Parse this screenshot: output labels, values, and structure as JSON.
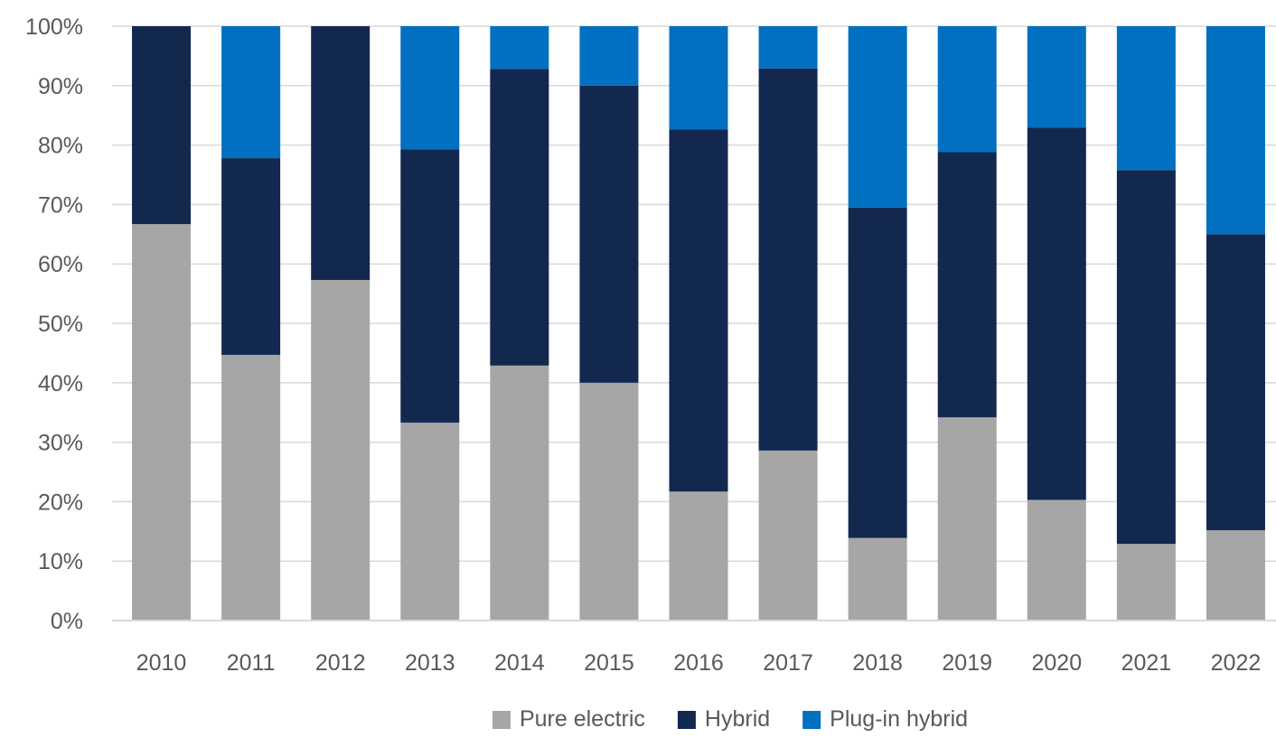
{
  "chart_data": {
    "type": "bar",
    "stacked": true,
    "categories": [
      "2010",
      "2011",
      "2012",
      "2013",
      "2014",
      "2015",
      "2016",
      "2017",
      "2018",
      "2019",
      "2020",
      "2021",
      "2022"
    ],
    "series": [
      {
        "name": "Pure electric",
        "color": "#a6a6a6",
        "values": [
          66.7,
          44.7,
          57.3,
          33.3,
          42.9,
          40.0,
          21.7,
          28.6,
          13.9,
          34.2,
          20.3,
          12.9,
          15.2
        ]
      },
      {
        "name": "Hybrid",
        "color": "#13284f",
        "values": [
          33.3,
          33.1,
          42.7,
          46.0,
          49.9,
          50.0,
          60.9,
          64.3,
          55.6,
          44.6,
          62.6,
          62.9,
          49.8
        ]
      },
      {
        "name": "Plug-in hybrid",
        "color": "#0270c0",
        "values": [
          0.0,
          22.2,
          0.0,
          20.7,
          7.2,
          10.0,
          17.4,
          7.1,
          30.5,
          21.2,
          17.1,
          24.2,
          35.0
        ]
      }
    ],
    "yticks": [
      "0%",
      "10%",
      "20%",
      "30%",
      "40%",
      "50%",
      "60%",
      "70%",
      "80%",
      "90%",
      "100%"
    ],
    "ylim": [
      0,
      100
    ],
    "grid": true,
    "legend_position": "bottom"
  }
}
